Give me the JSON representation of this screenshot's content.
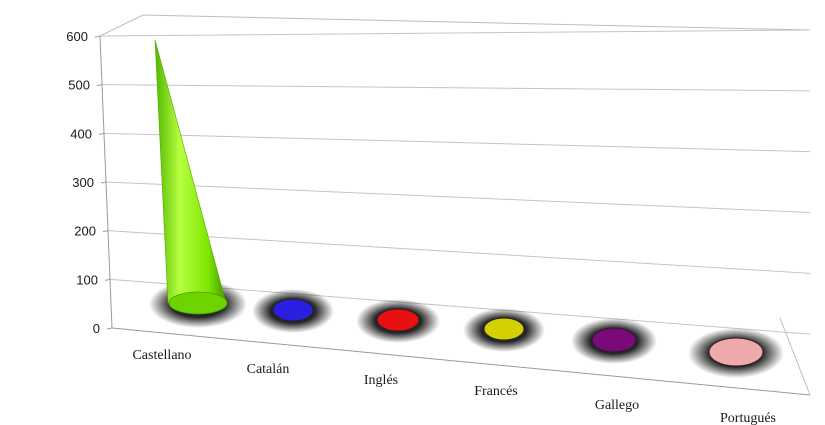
{
  "chart_data": {
    "type": "bar",
    "style": "3d-cone",
    "categories": [
      "Castellano",
      "Catalán",
      "Inglés",
      "Francés",
      "Gallego",
      "Portugués"
    ],
    "values": [
      595,
      0,
      0,
      0,
      0,
      0
    ],
    "colors": [
      "#7ee600",
      "#2a1fe0",
      "#e81010",
      "#d6d000",
      "#7a0a7a",
      "#f0a8a8"
    ],
    "yticks": [
      0,
      100,
      200,
      300,
      400,
      500,
      600
    ],
    "ylim": [
      0,
      600
    ],
    "grid": true,
    "legend": "none",
    "title": "",
    "xlabel": "",
    "ylabel": ""
  }
}
